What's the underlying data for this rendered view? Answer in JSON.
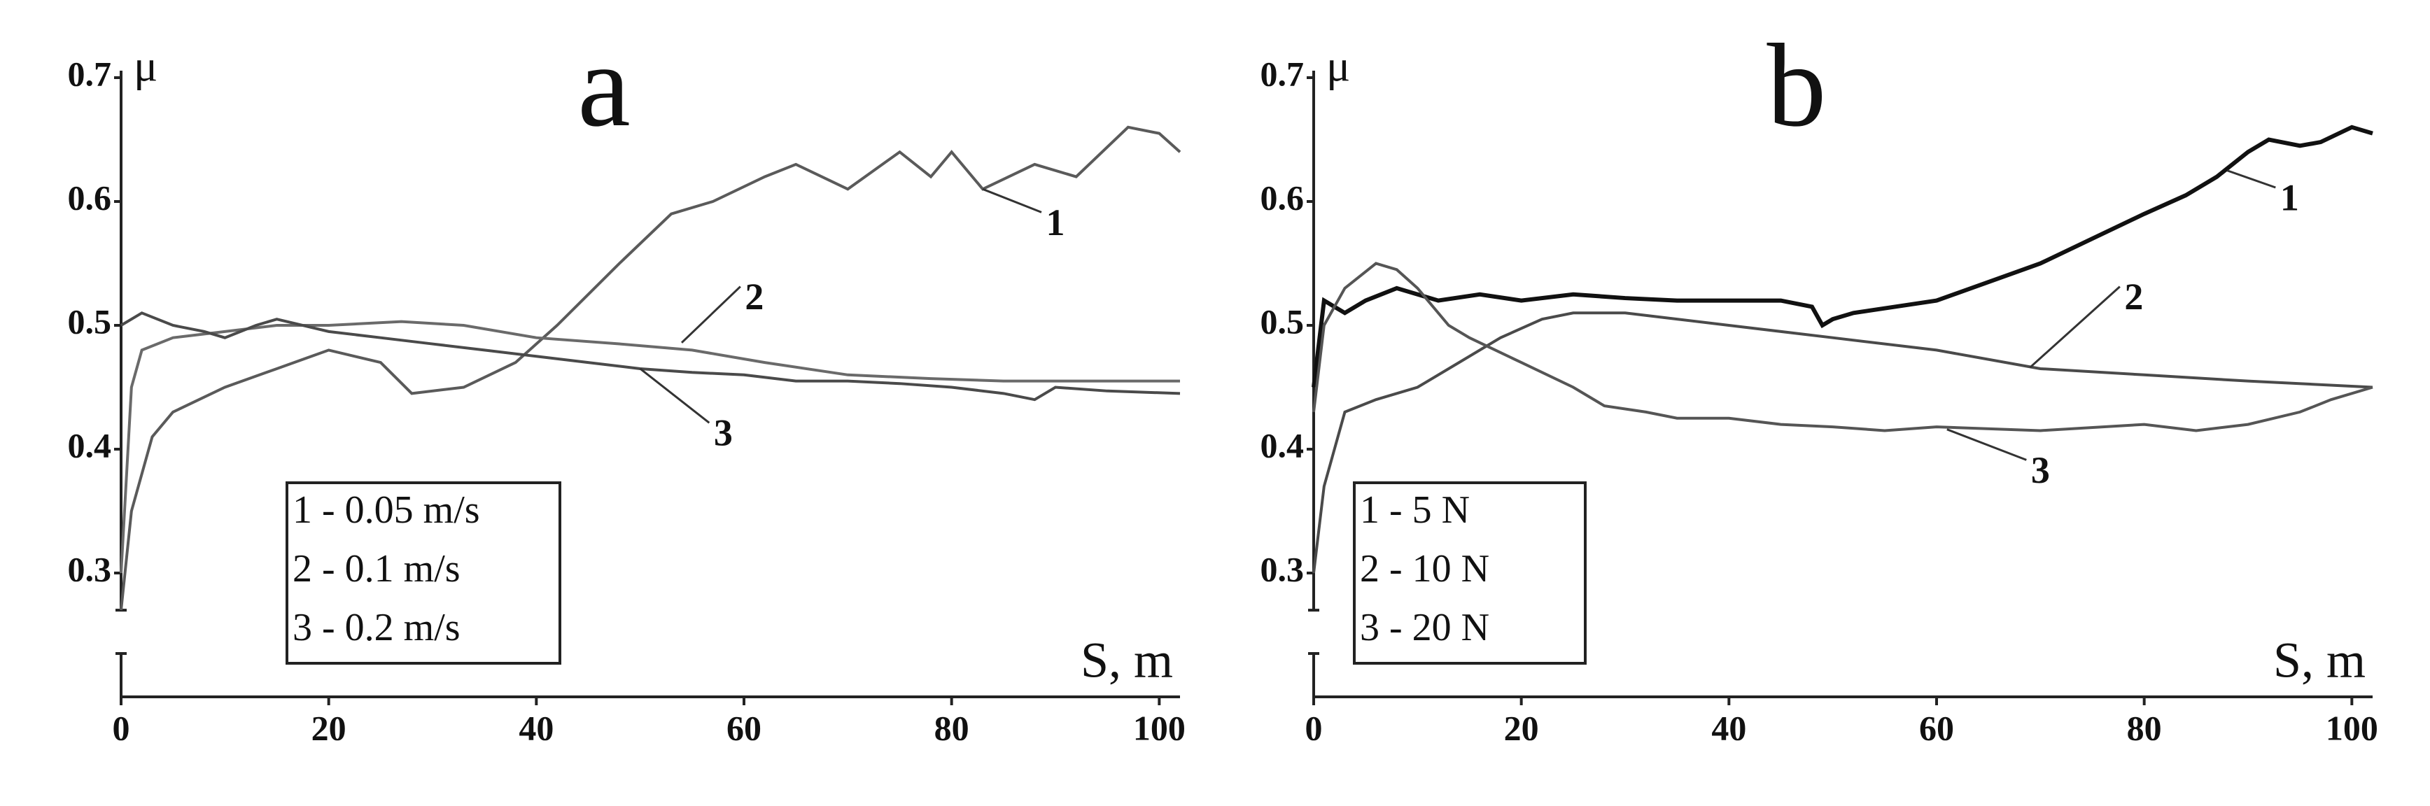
{
  "chart_data": [
    {
      "type": "line",
      "title": "a",
      "ylabel": "μ",
      "xlabel": "S, m",
      "xlim": [
        0,
        102
      ],
      "ylim": [
        0.2,
        0.7
      ],
      "xticks": [
        0,
        20,
        40,
        60,
        80,
        100
      ],
      "yticks": [
        0.3,
        0.4,
        0.5,
        0.6,
        0.7
      ],
      "curve_labels": [
        "1",
        "2",
        "3"
      ],
      "series": [
        {
          "name": "1 - 0.05 m/s",
          "color": "#5a5a5a",
          "x": [
            0,
            1,
            3,
            5,
            10,
            15,
            20,
            25,
            28,
            33,
            38,
            42,
            48,
            53,
            57,
            62,
            65,
            70,
            75,
            78,
            80,
            83,
            88,
            92,
            97,
            100,
            102
          ],
          "values": [
            0.27,
            0.35,
            0.41,
            0.43,
            0.45,
            0.465,
            0.48,
            0.47,
            0.445,
            0.45,
            0.47,
            0.5,
            0.55,
            0.59,
            0.6,
            0.62,
            0.63,
            0.61,
            0.64,
            0.62,
            0.64,
            0.61,
            0.63,
            0.62,
            0.66,
            0.655,
            0.64
          ]
        },
        {
          "name": "2 - 0.1 m/s",
          "color": "#6a6a6a",
          "x": [
            0,
            1,
            2,
            5,
            10,
            15,
            20,
            27,
            33,
            40,
            48,
            55,
            62,
            70,
            78,
            85,
            92,
            102
          ],
          "values": [
            0.3,
            0.45,
            0.48,
            0.49,
            0.495,
            0.5,
            0.5,
            0.503,
            0.5,
            0.49,
            0.485,
            0.48,
            0.47,
            0.46,
            0.457,
            0.455,
            0.455,
            0.455
          ]
        },
        {
          "name": "3 - 0.2 m/s",
          "color": "#4a4a4a",
          "x": [
            0,
            2,
            5,
            8,
            10,
            13,
            15,
            20,
            25,
            30,
            35,
            40,
            45,
            50,
            55,
            60,
            65,
            70,
            75,
            80,
            85,
            88,
            90,
            95,
            102
          ],
          "values": [
            0.5,
            0.51,
            0.5,
            0.495,
            0.49,
            0.5,
            0.505,
            0.495,
            0.49,
            0.485,
            0.48,
            0.475,
            0.47,
            0.465,
            0.462,
            0.46,
            0.455,
            0.455,
            0.453,
            0.45,
            0.445,
            0.44,
            0.45,
            0.447,
            0.445
          ]
        }
      ]
    },
    {
      "type": "line",
      "title": "b",
      "ylabel": "μ",
      "xlabel": "S, m",
      "xlim": [
        0,
        102
      ],
      "ylim": [
        0.2,
        0.7
      ],
      "xticks": [
        0,
        20,
        40,
        60,
        80,
        100
      ],
      "yticks": [
        0.3,
        0.4,
        0.5,
        0.6,
        0.7
      ],
      "curve_labels": [
        "1",
        "2",
        "3"
      ],
      "series": [
        {
          "name": "1 - 5 N",
          "color": "#111111",
          "x": [
            0,
            1,
            3,
            5,
            8,
            12,
            16,
            20,
            25,
            30,
            35,
            40,
            45,
            48,
            49,
            50,
            52,
            56,
            60,
            65,
            70,
            75,
            80,
            84,
            87,
            90,
            92,
            95,
            97,
            100,
            102
          ],
          "values": [
            0.45,
            0.52,
            0.51,
            0.52,
            0.53,
            0.52,
            0.525,
            0.52,
            0.525,
            0.522,
            0.52,
            0.52,
            0.52,
            0.515,
            0.5,
            0.505,
            0.51,
            0.515,
            0.52,
            0.535,
            0.55,
            0.57,
            0.59,
            0.605,
            0.62,
            0.64,
            0.65,
            0.645,
            0.648,
            0.66,
            0.655
          ]
        },
        {
          "name": "2 - 10 N",
          "color": "#4a4a4a",
          "x": [
            0,
            1,
            3,
            6,
            10,
            14,
            18,
            22,
            25,
            30,
            35,
            40,
            50,
            60,
            70,
            80,
            90,
            102
          ],
          "values": [
            0.3,
            0.37,
            0.43,
            0.44,
            0.45,
            0.47,
            0.49,
            0.505,
            0.51,
            0.51,
            0.505,
            0.5,
            0.49,
            0.48,
            0.465,
            0.46,
            0.455,
            0.45
          ]
        },
        {
          "name": "3 - 20 N",
          "color": "#555555",
          "x": [
            0,
            1,
            3,
            6,
            8,
            10,
            13,
            15,
            20,
            25,
            28,
            32,
            35,
            40,
            45,
            50,
            55,
            60,
            70,
            80,
            85,
            90,
            95,
            98,
            102
          ],
          "values": [
            0.43,
            0.5,
            0.53,
            0.55,
            0.545,
            0.53,
            0.5,
            0.49,
            0.47,
            0.45,
            0.435,
            0.43,
            0.425,
            0.425,
            0.42,
            0.418,
            0.415,
            0.418,
            0.415,
            0.42,
            0.415,
            0.42,
            0.43,
            0.44,
            0.45
          ]
        }
      ]
    }
  ]
}
